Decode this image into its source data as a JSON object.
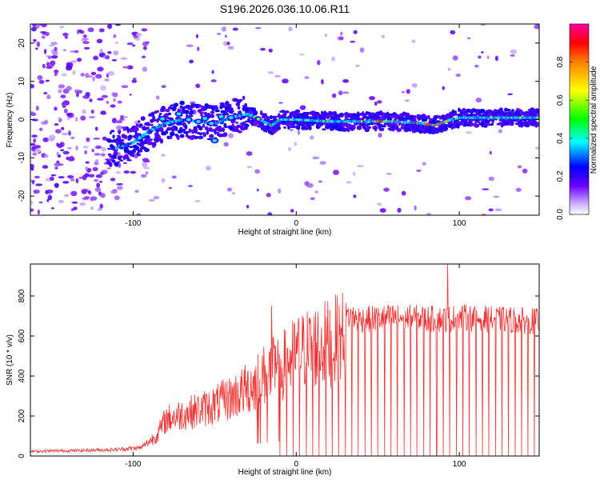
{
  "figure_title": "S196.2026.036.10.06.R11",
  "chart_data": [
    {
      "type": "heatmap",
      "xlabel": "Height of straight line (km)",
      "ylabel": "Frequency (Hz)",
      "xlim": [
        -163,
        149
      ],
      "ylim": [
        -25,
        25
      ],
      "xticks": [
        -100,
        0,
        100
      ],
      "xtick_labels": [
        "-100",
        "0",
        "100"
      ],
      "yticks": [
        -20,
        -10,
        0,
        10,
        20
      ],
      "ytick_labels": [
        "-20",
        "-10",
        "0",
        "10",
        "20"
      ],
      "ridge": {
        "description": "dominant frequency ridge",
        "x": [
          -110,
          -100,
          -90,
          -80,
          -70,
          -60,
          -50,
          -40,
          -30,
          -20,
          -15,
          -10,
          0,
          20,
          40,
          60,
          78,
          85,
          95,
          100,
          120,
          149
        ],
        "y": [
          -7.5,
          -6,
          -3,
          -1,
          0,
          -0.5,
          -1,
          0.5,
          1.5,
          -0.5,
          -1.5,
          0,
          0,
          -0.5,
          -0.5,
          -0.5,
          -1,
          -1.5,
          0,
          0.5,
          0.5,
          0.5
        ]
      },
      "colorbar": {
        "label": "Normalized spectral amplitude",
        "range": [
          0,
          1
        ],
        "ticks": [
          0.0,
          0.2,
          0.4,
          0.6,
          0.8
        ],
        "tick_labels": [
          "0.0",
          "0.2",
          "0.4",
          "0.6",
          "0.8"
        ],
        "colors": [
          "#ffffff",
          "#c8a8ff",
          "#6a00ff",
          "#0000ff",
          "#00ffff",
          "#00ff00",
          "#ffff00",
          "#ff8000",
          "#ff0000",
          "#ff00a0"
        ]
      }
    },
    {
      "type": "line",
      "xlabel": "Height of straight line (km)",
      "ylabel": "SNR (10 * v/v)",
      "xlim": [
        -163,
        149
      ],
      "ylim": [
        0,
        960
      ],
      "xticks": [
        -100,
        0,
        100
      ],
      "xtick_labels": [
        "-100",
        "0",
        "100"
      ],
      "yticks": [
        0,
        200,
        400,
        600,
        800
      ],
      "ytick_labels": [
        "0",
        "200",
        "400",
        "600",
        "800"
      ],
      "series": [
        {
          "name": "SNR",
          "color": "#ee3333",
          "envelope_x": [
            -163,
            -130,
            -110,
            -95,
            -90,
            -85,
            -80,
            -70,
            -60,
            -50,
            -40,
            -30,
            -20,
            -15,
            -10,
            -5,
            0,
            10,
            20,
            28,
            30,
            40,
            60,
            90,
            100,
            120,
            149
          ],
          "envelope_y": [
            25,
            30,
            35,
            45,
            80,
            120,
            200,
            230,
            250,
            280,
            320,
            370,
            440,
            470,
            480,
            520,
            560,
            600,
            620,
            650,
            720,
            700,
            710,
            700,
            710,
            700,
            690
          ],
          "spike_points": [
            {
              "x": -15,
              "y": 750
            },
            {
              "x": 93,
              "y": 960
            }
          ],
          "dropout_spacing_km": 4,
          "dropout_start_km": -10
        }
      ]
    }
  ]
}
